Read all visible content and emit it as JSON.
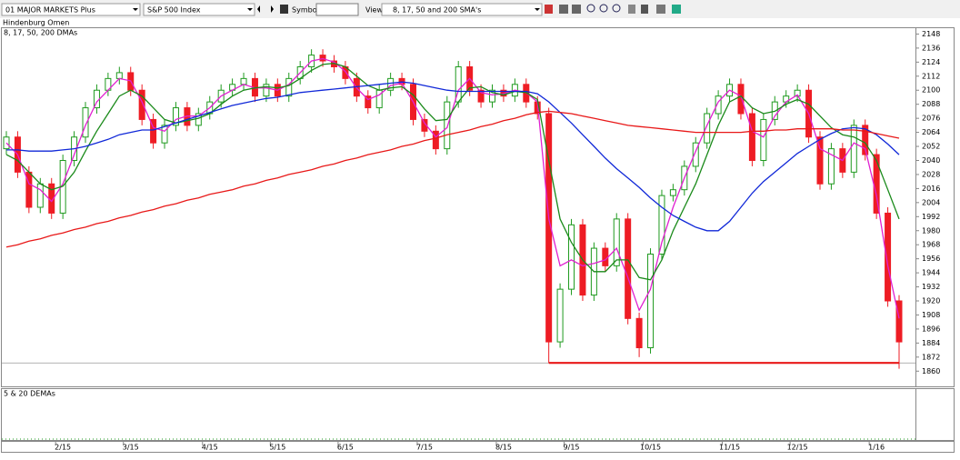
{
  "toolbar": {
    "list": "01 MAJOR MARKETS Plus",
    "index": "S&P 500 Index",
    "symbol_label": "Symbol:",
    "view_label": "View:",
    "view": "8, 17, 50 and 200 SMA's"
  },
  "panels": {
    "upper": "Hindenburg Omen",
    "lower": "5 & 20 DEMAs"
  },
  "chart_data": {
    "type": "candlestick",
    "title": "8, 17, 50, 200 DMAs",
    "categories": [
      null,
      null,
      null,
      null,
      null,
      "2/15",
      null,
      null,
      null,
      null,
      null,
      "3/15",
      null,
      null,
      null,
      null,
      null,
      null,
      "4/15",
      null,
      null,
      null,
      null,
      null,
      "5/15",
      null,
      null,
      null,
      null,
      null,
      "6/15",
      null,
      null,
      null,
      null,
      null,
      null,
      "7/15",
      null,
      null,
      null,
      null,
      null,
      null,
      "8/15",
      null,
      null,
      null,
      null,
      null,
      "9/15",
      null,
      null,
      null,
      null,
      null,
      null,
      "10/15",
      null,
      null,
      null,
      null,
      null,
      null,
      "11/15",
      null,
      null,
      null,
      null,
      null,
      "12/15",
      null,
      null,
      null,
      null,
      null,
      null,
      "1/16",
      null,
      null
    ],
    "open": [
      2050,
      2060,
      2030,
      2000,
      2020,
      1995,
      2040,
      2060,
      2085,
      2100,
      2110,
      2115,
      2100,
      2075,
      2055,
      2070,
      2085,
      2070,
      2080,
      2090,
      2100,
      2105,
      2110,
      2095,
      2105,
      2095,
      2110,
      2120,
      2130,
      2125,
      2120,
      2110,
      2095,
      2085,
      2100,
      2110,
      2105,
      2075,
      2065,
      2050,
      2090,
      2120,
      2100,
      2090,
      2100,
      2095,
      2105,
      2090,
      2080,
      1885,
      1930,
      1985,
      1925,
      1965,
      1950,
      1990,
      1905,
      1880,
      1960,
      2010,
      2015,
      2035,
      2055,
      2080,
      2095,
      2105,
      2080,
      2040,
      2075,
      2090,
      2095,
      2100,
      2060,
      2020,
      2050,
      2030,
      2070,
      2045,
      1995,
      1920
    ],
    "high": [
      2065,
      2065,
      2035,
      2025,
      2025,
      2045,
      2065,
      2090,
      2105,
      2115,
      2120,
      2120,
      2105,
      2080,
      2075,
      2090,
      2090,
      2085,
      2095,
      2105,
      2110,
      2115,
      2115,
      2110,
      2110,
      2115,
      2125,
      2135,
      2135,
      2130,
      2125,
      2115,
      2100,
      2105,
      2115,
      2115,
      2110,
      2080,
      2070,
      2095,
      2125,
      2125,
      2105,
      2105,
      2105,
      2110,
      2110,
      2095,
      2085,
      1935,
      1990,
      1990,
      1970,
      1970,
      1995,
      1995,
      1910,
      1965,
      2015,
      2020,
      2040,
      2060,
      2085,
      2100,
      2110,
      2110,
      2085,
      2080,
      2095,
      2100,
      2105,
      2105,
      2065,
      2055,
      2055,
      2075,
      2075,
      2050,
      2000,
      1925
    ],
    "low": [
      2045,
      2025,
      1995,
      1995,
      1990,
      1990,
      2035,
      2055,
      2080,
      2095,
      2105,
      2095,
      2070,
      2050,
      2050,
      2065,
      2065,
      2065,
      2075,
      2085,
      2095,
      2100,
      2090,
      2090,
      2090,
      2090,
      2105,
      2115,
      2120,
      2115,
      2105,
      2090,
      2080,
      2080,
      2095,
      2100,
      2070,
      2060,
      2045,
      2045,
      2085,
      2095,
      2085,
      2085,
      2090,
      2090,
      2085,
      2075,
      1867,
      1880,
      1925,
      1920,
      1920,
      1945,
      1945,
      1900,
      1872,
      1875,
      1955,
      2005,
      2010,
      2030,
      2050,
      2075,
      2090,
      2075,
      2035,
      2035,
      2070,
      2085,
      2090,
      2055,
      2015,
      2015,
      2025,
      2025,
      2040,
      1990,
      1915,
      1862
    ],
    "close": [
      2060,
      2030,
      2000,
      2020,
      1995,
      2040,
      2060,
      2085,
      2100,
      2110,
      2115,
      2100,
      2075,
      2055,
      2070,
      2085,
      2070,
      2080,
      2090,
      2100,
      2105,
      2110,
      2095,
      2105,
      2095,
      2110,
      2120,
      2130,
      2125,
      2120,
      2110,
      2095,
      2085,
      2100,
      2110,
      2105,
      2075,
      2065,
      2050,
      2090,
      2120,
      2100,
      2090,
      2100,
      2095,
      2105,
      2090,
      2080,
      1885,
      1930,
      1985,
      1925,
      1965,
      1950,
      1990,
      1905,
      1880,
      1960,
      2010,
      2015,
      2035,
      2055,
      2080,
      2095,
      2105,
      2080,
      2040,
      2075,
      2090,
      2095,
      2100,
      2060,
      2020,
      2050,
      2030,
      2070,
      2045,
      1995,
      1920,
      1885
    ],
    "up_color": "#1f9a1f",
    "down_color": "#ee1c24",
    "series": [
      {
        "color": "#e020d0",
        "values": [
          2055,
          2045,
          2020,
          2015,
          2005,
          2020,
          2045,
          2070,
          2090,
          2100,
          2110,
          2108,
          2090,
          2068,
          2065,
          2075,
          2078,
          2078,
          2085,
          2095,
          2100,
          2105,
          2102,
          2102,
          2100,
          2105,
          2115,
          2125,
          2127,
          2124,
          2116,
          2102,
          2092,
          2096,
          2104,
          2106,
          2090,
          2072,
          2060,
          2068,
          2100,
          2110,
          2098,
          2096,
          2097,
          2100,
          2098,
          2090,
          1990,
          1950,
          1955,
          1950,
          1952,
          1955,
          1965,
          1940,
          1912,
          1930,
          1970,
          2000,
          2025,
          2048,
          2070,
          2090,
          2100,
          2095,
          2065,
          2060,
          2078,
          2090,
          2096,
          2080,
          2050,
          2045,
          2040,
          2055,
          2050,
          2010,
          1950,
          1905
        ]
      },
      {
        "color": "#1a8a1a",
        "values": [
          2045,
          2040,
          2030,
          2020,
          2015,
          2018,
          2030,
          2048,
          2065,
          2080,
          2095,
          2100,
          2095,
          2085,
          2075,
          2072,
          2074,
          2076,
          2080,
          2088,
          2095,
          2100,
          2102,
          2103,
          2102,
          2104,
          2110,
          2117,
          2122,
          2123,
          2120,
          2112,
          2104,
          2100,
          2102,
          2103,
          2096,
          2084,
          2074,
          2075,
          2090,
          2102,
          2103,
          2098,
          2096,
          2099,
          2098,
          2092,
          2040,
          1990,
          1970,
          1955,
          1945,
          1945,
          1955,
          1955,
          1940,
          1938,
          1955,
          1980,
          2000,
          2020,
          2045,
          2070,
          2090,
          2095,
          2085,
          2080,
          2082,
          2088,
          2092,
          2088,
          2078,
          2068,
          2062,
          2060,
          2055,
          2040,
          2015,
          1990
        ]
      },
      {
        "color": "#1028d8",
        "values": [
          2049,
          2049,
          2048,
          2048,
          2048,
          2049,
          2050,
          2052,
          2055,
          2058,
          2062,
          2064,
          2066,
          2066,
          2069,
          2072,
          2075,
          2078,
          2081,
          2084,
          2087,
          2089,
          2091,
          2093,
          2094,
          2096,
          2098,
          2099,
          2100,
          2101,
          2102,
          2103,
          2104,
          2105,
          2106,
          2107,
          2106,
          2104,
          2102,
          2100,
          2099,
          2099,
          2099,
          2099,
          2099,
          2099,
          2099,
          2097,
          2090,
          2081,
          2072,
          2062,
          2052,
          2042,
          2033,
          2025,
          2017,
          2008,
          2000,
          1993,
          1988,
          1983,
          1980,
          1980,
          1988,
          2000,
          2012,
          2022,
          2030,
          2038,
          2046,
          2052,
          2058,
          2063,
          2067,
          2068,
          2067,
          2062,
          2054,
          2045
        ]
      },
      {
        "color": "#e81818",
        "values": [
          1966,
          1968,
          1971,
          1973,
          1976,
          1978,
          1981,
          1983,
          1986,
          1988,
          1991,
          1993,
          1996,
          1998,
          2001,
          2003,
          2006,
          2008,
          2011,
          2013,
          2015,
          2018,
          2020,
          2023,
          2025,
          2028,
          2030,
          2032,
          2035,
          2037,
          2040,
          2042,
          2045,
          2047,
          2049,
          2052,
          2054,
          2057,
          2059,
          2062,
          2064,
          2066,
          2069,
          2071,
          2074,
          2076,
          2079,
          2081,
          2082,
          2081,
          2080,
          2078,
          2076,
          2074,
          2072,
          2070,
          2069,
          2068,
          2067,
          2066,
          2065,
          2064,
          2064,
          2064,
          2064,
          2064,
          2065,
          2065,
          2066,
          2066,
          2067,
          2067,
          2067,
          2067,
          2066,
          2066,
          2065,
          2063,
          2061,
          2059
        ]
      }
    ],
    "level_line": {
      "color": "#e81818",
      "values": [
        null,
        null,
        null,
        null,
        null,
        null,
        null,
        null,
        null,
        null,
        null,
        null,
        null,
        null,
        null,
        null,
        null,
        null,
        null,
        null,
        null,
        null,
        null,
        null,
        null,
        null,
        null,
        null,
        null,
        null,
        null,
        null,
        null,
        null,
        null,
        null,
        null,
        null,
        null,
        null,
        null,
        null,
        null,
        null,
        null,
        null,
        null,
        null,
        1867,
        1867,
        1867,
        1867,
        1867,
        1867,
        1867,
        1867,
        1867,
        1867,
        1867,
        1867,
        1867,
        1867,
        1867,
        1867,
        1867,
        1867,
        1867,
        1867,
        1867,
        1867,
        1867,
        1867,
        1867,
        1867,
        1867,
        1867,
        1867,
        1867,
        1867,
        1867
      ]
    },
    "ylim": [
      1847,
      2153
    ],
    "yticks": [
      2148,
      2136,
      2124,
      2112,
      2100,
      2088,
      2076,
      2064,
      2052,
      2040,
      2028,
      2016,
      2004,
      1992,
      1980,
      1968,
      1956,
      1944,
      1932,
      1920,
      1908,
      1896,
      1884,
      1872,
      1860
    ]
  }
}
